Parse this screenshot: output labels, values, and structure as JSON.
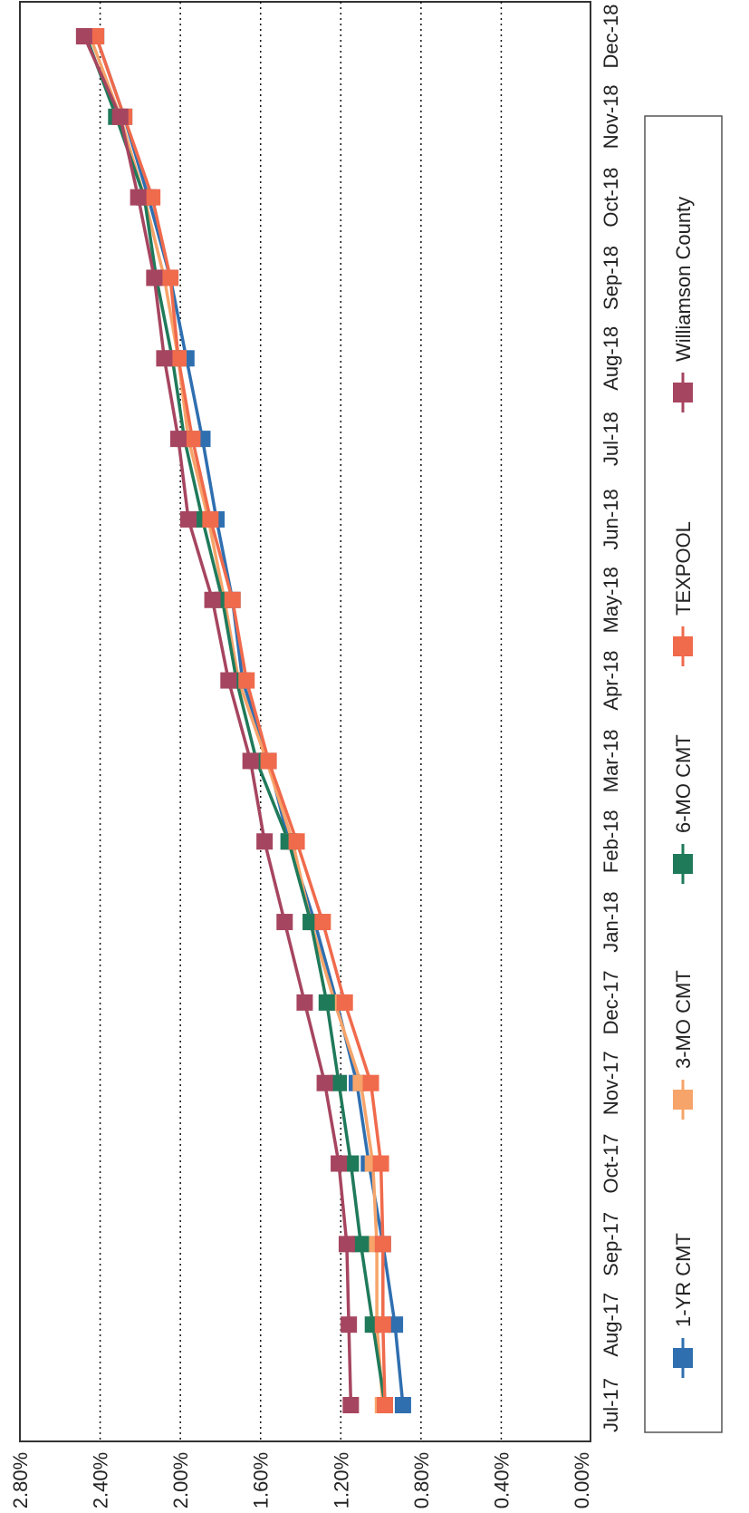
{
  "chart_data": {
    "type": "line",
    "orientation": "rotated-90-clockwise",
    "title": "",
    "xlabel": "",
    "ylabel": "",
    "categories": [
      "Jul-17",
      "Aug-17",
      "Sep-17",
      "Oct-17",
      "Nov-17",
      "Dec-17",
      "Jan-18",
      "Feb-18",
      "Mar-18",
      "Apr-18",
      "May-18",
      "Jun-18",
      "Jul-18",
      "Aug-18",
      "Sep-18",
      "Oct-18",
      "Nov-18",
      "Dec-18"
    ],
    "y_ticks": [
      "0.00%",
      "0.40%",
      "0.80%",
      "1.20%",
      "1.60%",
      "2.00%",
      "2.40%",
      "2.80%"
    ],
    "ylim": [
      0,
      2.8
    ],
    "grid": "dotted horizontal",
    "legend_position": "bottom",
    "series": [
      {
        "name": "1-YR CMT",
        "color": "#2f6fb0",
        "values": [
          0.89,
          0.93,
          0.99,
          1.06,
          1.12,
          1.22,
          1.33,
          1.46,
          1.56,
          1.69,
          1.74,
          1.82,
          1.89,
          1.97,
          2.05,
          2.16,
          2.28,
          2.42
        ]
      },
      {
        "name": "3-MO CMT",
        "color": "#f7a46a",
        "values": [
          0.99,
          1.02,
          1.02,
          1.04,
          1.1,
          1.23,
          1.35,
          1.44,
          1.57,
          1.71,
          1.78,
          1.86,
          1.96,
          2.01,
          2.08,
          2.18,
          2.3,
          2.45
        ]
      },
      {
        "name": "6-MO CMT",
        "color": "#1f7a5a",
        "values": [
          0.98,
          1.04,
          1.1,
          1.15,
          1.21,
          1.27,
          1.35,
          1.46,
          1.62,
          1.72,
          1.79,
          1.89,
          1.98,
          2.04,
          2.12,
          2.18,
          2.32,
          2.47
        ]
      },
      {
        "name": "TEXPOOL",
        "color": "#f06a4c",
        "values": [
          0.98,
          0.99,
          0.99,
          1.0,
          1.05,
          1.18,
          1.29,
          1.42,
          1.56,
          1.67,
          1.74,
          1.85,
          1.94,
          2.01,
          2.05,
          2.14,
          2.28,
          2.42
        ]
      },
      {
        "name": "Williamson County",
        "color": "#a64560",
        "values": [
          1.15,
          1.16,
          1.17,
          1.21,
          1.28,
          1.38,
          1.48,
          1.58,
          1.65,
          1.76,
          1.84,
          1.96,
          2.01,
          2.08,
          2.13,
          2.21,
          2.3,
          2.48
        ]
      }
    ]
  }
}
